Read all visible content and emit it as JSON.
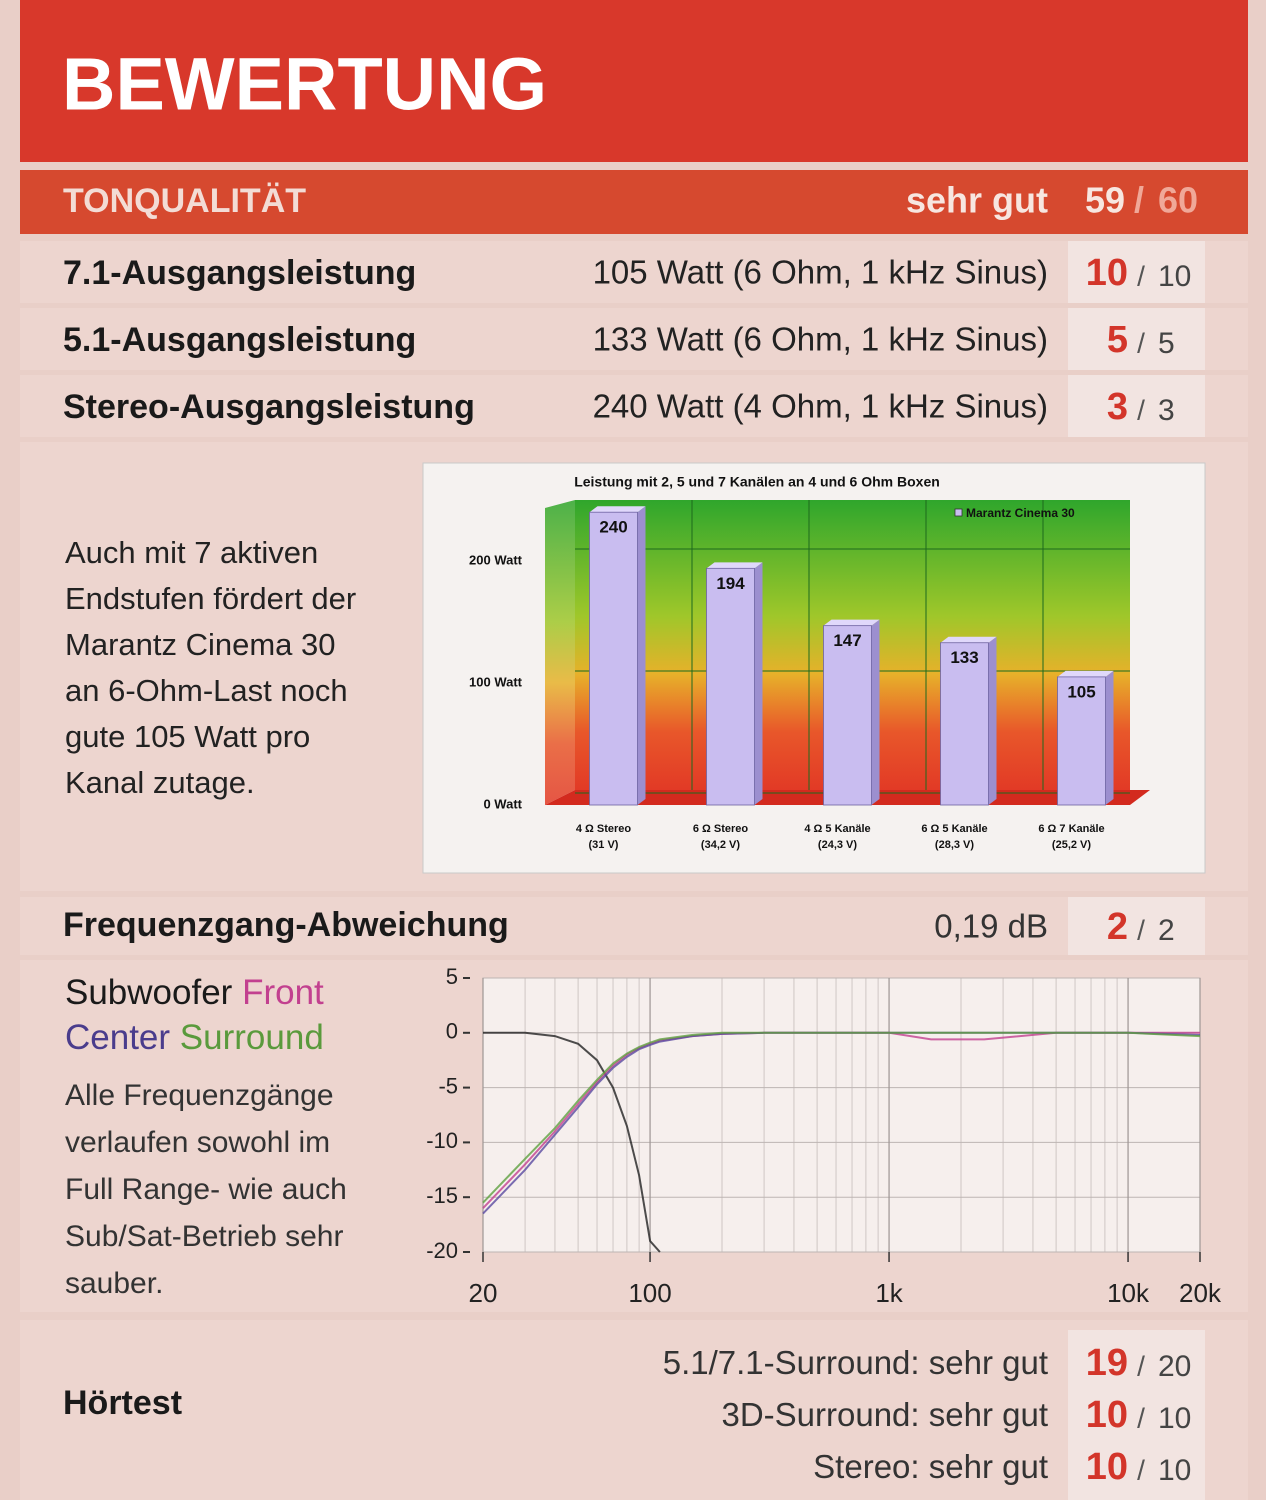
{
  "separator": "/",
  "header": {
    "title": "BEWERTUNG"
  },
  "section": {
    "title": "TONQUALITÄT",
    "rating": "sehr gut",
    "score": "59",
    "max": "60"
  },
  "rows": [
    {
      "label": "7.1-Ausgangsleistung",
      "value": "105 Watt (6 Ohm, 1 kHz Sinus)",
      "score": "10",
      "max": "10"
    },
    {
      "label": "5.1-Ausgangsleistung",
      "value": "133 Watt (6 Ohm, 1 kHz Sinus)",
      "score": "5",
      "max": "5"
    },
    {
      "label": "Stereo-Ausgangsleistung",
      "value": "240 Watt (4 Ohm, 1 kHz Sinus)",
      "score": "3",
      "max": "3"
    }
  ],
  "power_note": {
    "lines": [
      "Auch mit 7 aktiven",
      "Endstufen fördert der",
      "Marantz Cinema 30",
      "an 6-Ohm-Last noch",
      "gute 105 Watt pro",
      "Kanal zutage."
    ]
  },
  "frequency_row": {
    "label": "Frequenzgang-Abweichung",
    "value": "0,19 dB",
    "score": "2",
    "max": "2"
  },
  "frequency_note": {
    "lines": [
      "Alle Frequenzgänge",
      "verlaufen sowohl im",
      "Full Range- wie auch",
      "Sub/Sat-Betrieb sehr",
      "sauber."
    ]
  },
  "chart_data": [
    {
      "type": "bar",
      "title": "Leistung mit 2, 5 und 7 Kanälen an 4 und 6 Ohm Boxen",
      "categories": [
        [
          "4 Ω Stereo",
          "(31 V)"
        ],
        [
          "6 Ω Stereo",
          "(34,2 V)"
        ],
        [
          "4 Ω  5 Kanäle",
          "(24,3 V)"
        ],
        [
          "6 Ω  5 Kanäle",
          "(28,3 V)"
        ],
        [
          "6 Ω  7 Kanäle",
          "(25,2 V)"
        ]
      ],
      "series": [
        {
          "name": "Marantz  Cinema 30",
          "color": "#c9bdf0",
          "values": [
            240,
            194,
            147,
            133,
            105
          ]
        }
      ],
      "ylim": [
        0,
        250
      ],
      "yticks": [
        {
          "value": 0,
          "label": "0 Watt"
        },
        {
          "value": 100,
          "label": "100 Watt"
        },
        {
          "value": 200,
          "label": "200 Watt"
        }
      ],
      "grid": true
    },
    {
      "type": "line",
      "xlog": true,
      "x": [
        20,
        30,
        40,
        50,
        60,
        70,
        80,
        90,
        100,
        110,
        150,
        200,
        300,
        500,
        1000,
        1500,
        2500,
        5000,
        10000,
        20000
      ],
      "series": [
        {
          "name": "Subwoofer",
          "color": "#222222",
          "values": [
            0,
            0,
            -0.3,
            -1,
            -2.5,
            -5,
            -8.5,
            -13,
            -19,
            -20,
            null,
            null,
            null,
            null,
            null,
            null,
            null,
            null,
            null,
            null
          ]
        },
        {
          "name": "Front",
          "color": "#c2408f",
          "values": [
            -16,
            -12,
            -9,
            -6.5,
            -4.5,
            -3,
            -2,
            -1.4,
            -1,
            -0.7,
            -0.3,
            -0.1,
            0,
            0,
            0,
            -0.6,
            -0.6,
            0,
            0,
            0
          ]
        },
        {
          "name": "Center",
          "color": "#5a4aa0",
          "values": [
            -16.5,
            -12.5,
            -9.3,
            -6.8,
            -4.7,
            -3.2,
            -2.2,
            -1.5,
            -1.1,
            -0.8,
            -0.3,
            -0.1,
            0,
            0,
            0,
            0,
            0,
            0,
            0,
            -0.2
          ]
        },
        {
          "name": "Surround",
          "color": "#5fa040",
          "values": [
            -15.5,
            -11.5,
            -8.7,
            -6.2,
            -4.3,
            -2.8,
            -1.9,
            -1.3,
            -0.9,
            -0.6,
            -0.2,
            0,
            0,
            0,
            0,
            0,
            0,
            0,
            0,
            -0.3
          ]
        }
      ],
      "xlim": [
        20,
        20000
      ],
      "ylim": [
        -20,
        5
      ],
      "xticks": [
        20,
        100,
        {
          "value": 1000,
          "label": "1k"
        },
        {
          "value": 10000,
          "label": "10k"
        },
        {
          "value": 20000,
          "label": "20k"
        }
      ],
      "yticks": [
        5,
        0,
        -5,
        -10,
        -15,
        -20
      ],
      "grid": true
    }
  ],
  "listening": {
    "label": "Hörtest",
    "items": [
      {
        "label": "5.1/7.1-Surround:",
        "rating": "sehr gut",
        "score": "19",
        "max": "20"
      },
      {
        "label": "3D-Surround:",
        "rating": "sehr gut",
        "score": "10",
        "max": "10"
      },
      {
        "label": "Stereo:",
        "rating": "sehr gut",
        "score": "10",
        "max": "10"
      }
    ]
  }
}
